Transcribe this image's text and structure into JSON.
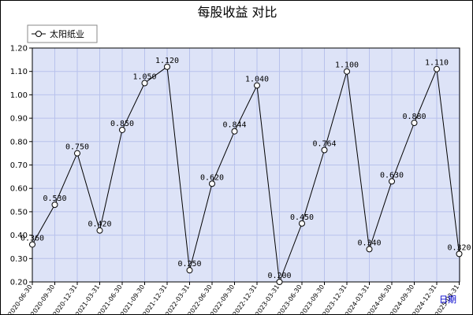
{
  "chart_data": {
    "type": "line",
    "title": "每股收益  对比",
    "xlabel": "日期",
    "ylabel": "",
    "ylim": [
      0.2,
      1.2
    ],
    "yticks": [
      "0.20",
      "0.30",
      "0.40",
      "0.50",
      "0.60",
      "0.70",
      "0.80",
      "0.90",
      "1.00",
      "1.10",
      "1.20"
    ],
    "grid": true,
    "legend_position": "top-left",
    "categories": [
      "2020-06-30",
      "2020-09-30",
      "2020-12-31",
      "2021-03-31",
      "2021-06-30",
      "2021-09-30",
      "2021-12-31",
      "2022-03-31",
      "2022-06-30",
      "2022-09-30",
      "2022-12-31",
      "2023-03-31",
      "2023-06-30",
      "2023-09-30",
      "2023-12-31",
      "2024-03-31",
      "2024-06-30",
      "2024-09-30",
      "2024-12-31",
      "2025-03-31"
    ],
    "series": [
      {
        "name": "太阳纸业",
        "values": [
          0.36,
          0.53,
          0.75,
          0.42,
          0.85,
          1.05,
          1.12,
          0.25,
          0.62,
          0.844,
          1.04,
          0.2,
          0.45,
          0.764,
          1.1,
          0.34,
          0.63,
          0.88,
          1.11,
          0.32
        ],
        "labels": [
          "0.360",
          "0.530",
          "0.750",
          "0.420",
          "0.850",
          "1.050",
          "1.120",
          "0.250",
          "0.620",
          "0.844",
          "1.040",
          "0.200",
          "0.450",
          "0.764",
          "1.100",
          "0.340",
          "0.630",
          "0.880",
          "1.110",
          "0.320"
        ]
      }
    ],
    "colors": {
      "plot_background": "#dde3f7",
      "grid": "#b8c2ec",
      "line": "#000000",
      "marker_fill": "#ffffff",
      "axis_label": "#0000cc"
    }
  }
}
